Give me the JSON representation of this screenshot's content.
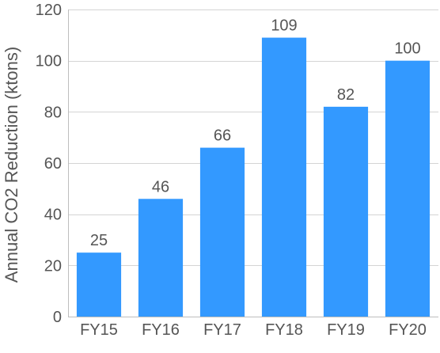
{
  "chart_data": {
    "type": "bar",
    "title": "",
    "xlabel": "",
    "ylabel": "Annual CO2 Reduction (ktons)",
    "categories": [
      "FY15",
      "FY16",
      "FY17",
      "FY18",
      "FY19",
      "FY20"
    ],
    "values": [
      25,
      46,
      66,
      109,
      82,
      100
    ],
    "ylim": [
      0,
      120
    ],
    "yticks": [
      0,
      20,
      40,
      60,
      80,
      100,
      120
    ],
    "grid": true,
    "legend": "none",
    "bar_color": "#3399ff",
    "text_color": "#555555",
    "grid_color": "#d4d4d4"
  }
}
